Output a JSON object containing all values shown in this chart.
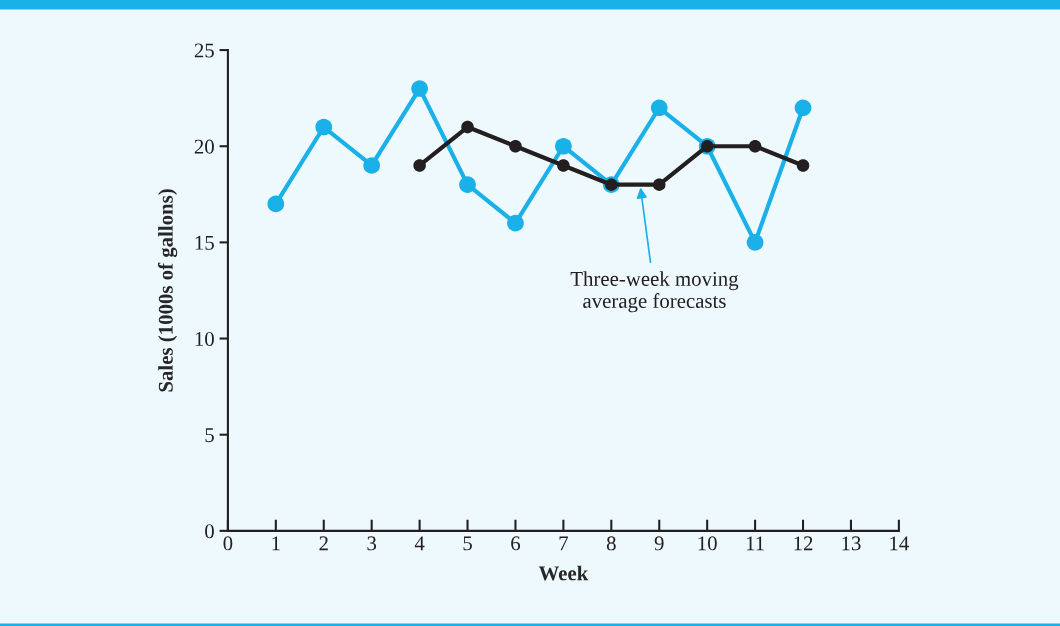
{
  "chart_data": {
    "type": "line",
    "xlabel": "Week",
    "ylabel": "Sales (1000s of gallons)",
    "xlim": [
      0,
      14
    ],
    "xticks": [
      0,
      1,
      2,
      3,
      4,
      5,
      6,
      7,
      8,
      9,
      10,
      11,
      12,
      13,
      14
    ],
    "ylim": [
      0,
      25
    ],
    "yticks": [
      0,
      5,
      10,
      15,
      20,
      25
    ],
    "grid": false,
    "legend": false,
    "marker": "circle",
    "line_style": "solid",
    "series": [
      {
        "color": "#1ab0e8",
        "x": [
          1,
          2,
          3,
          4,
          5,
          6,
          7,
          8,
          9,
          10,
          11,
          12
        ],
        "values": [
          17,
          21,
          19,
          23,
          18,
          16,
          20,
          18,
          22,
          20,
          15,
          22
        ]
      },
      {
        "color": "#231f20",
        "x": [
          4,
          5,
          6,
          7,
          8,
          9,
          10,
          11,
          12
        ],
        "values": [
          19,
          21,
          20,
          19,
          18,
          18,
          20,
          20,
          19
        ]
      }
    ],
    "annotations": [
      {
        "text": "Three-week moving\naverage forecasts",
        "x": 8.6,
        "y": 18
      }
    ]
  }
}
